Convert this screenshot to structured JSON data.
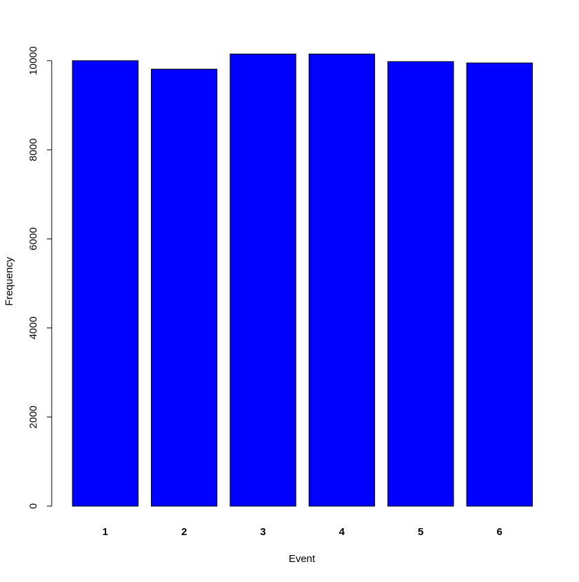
{
  "chart_data": {
    "type": "bar",
    "x_label": "Event",
    "y_label": "Frequency",
    "categories": [
      "1",
      "2",
      "3",
      "4",
      "5",
      "6"
    ],
    "values": [
      10000,
      9810,
      10150,
      10150,
      9980,
      9950
    ],
    "color": "#0000ff",
    "ylim": [
      0,
      10500
    ],
    "yticks": [
      0,
      2000,
      4000,
      6000,
      8000,
      10000
    ],
    "grid": false
  }
}
